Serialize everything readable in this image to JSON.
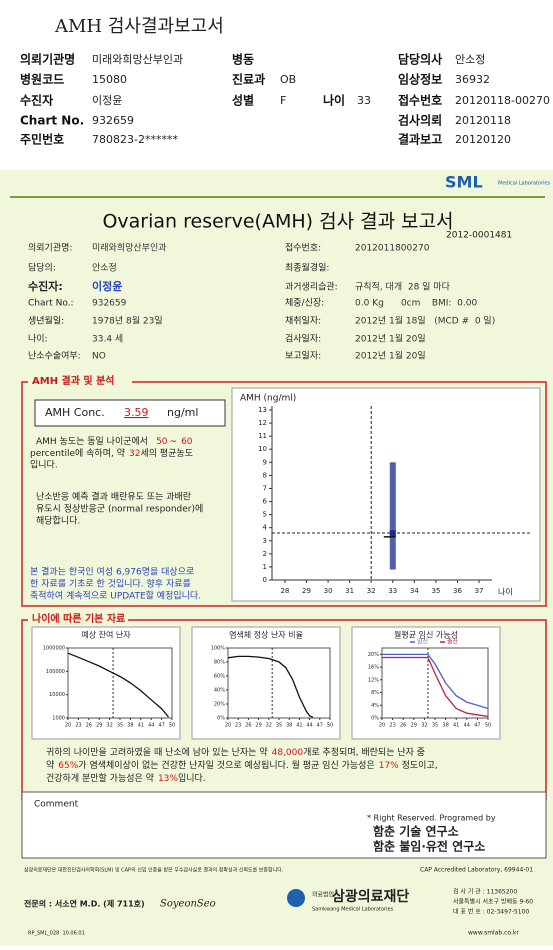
{
  "header": {
    "title": "AMH 검사결과보고서",
    "rows": [
      [
        {
          "label": "의뢰기관명",
          "value": "미래와희망산부인과"
        },
        {
          "label": "병동"
        },
        {
          "label": "담당의사",
          "value": "안소정"
        }
      ],
      [
        {
          "label": "병원코드",
          "value": "15080"
        },
        {
          "label": "진료과",
          "value": "OB"
        },
        {
          "label": "임상정보",
          "value": "36932"
        }
      ],
      [
        {
          "label": "수진자",
          "value": "이정윤"
        },
        {
          "label": "성별",
          "value": "F"
        },
        {
          "label": "나이",
          "value": "33"
        },
        {
          "label": "접수번호",
          "value": "20120118-00270"
        }
      ],
      [
        {
          "label": "Chart No.",
          "value": "932659"
        },
        {
          "label": "검사의뢰",
          "value": "20120118"
        }
      ],
      [
        {
          "label": "주민번호",
          "value": "780823-2******"
        },
        {
          "label": "결과보고",
          "value": "20120120"
        }
      ]
    ]
  },
  "report": {
    "logo": "SML",
    "logo_sub": "Medical Laboratories",
    "title": "Ovarian reserve(AMH) 검사 결과 보고서",
    "number": "2012-0001481",
    "info_left": [
      {
        "label": "의뢰기관명:",
        "value": "미래와희망산부인과"
      },
      {
        "label": "담당의:",
        "value": "안소정"
      },
      {
        "label": "수진자:",
        "value": "이정윤"
      },
      {
        "label": "Chart No.:",
        "value": "932659"
      },
      {
        "label": "생년월일:",
        "value": "1978년 8월 23일"
      },
      {
        "label": "나이:",
        "value": "33.4 세"
      },
      {
        "label": "난소수술여부:",
        "value": "NO"
      }
    ],
    "info_right": [
      {
        "label": "접수번호:",
        "value": "2012011800270"
      },
      {
        "label": "최종월경일:"
      },
      {
        "label": "과거생리습관:",
        "value": "규칙적, 대개  28 일 마다"
      },
      {
        "label": "체중/신장:",
        "value": "0.0 Kg      0cm    BMI:  0.00"
      },
      {
        "label": "채취일자:",
        "value": "2012년 1월 18일   (MCD #  0 일)"
      },
      {
        "label": "검사일자:",
        "value": "2012년 1월 20일"
      },
      {
        "label": "보고일자:",
        "value": "2012년 1월 20일"
      }
    ]
  },
  "analysis": {
    "title": "AMH 결과 및 분석",
    "conc_label": "AMH Conc.",
    "conc_value": 3.59,
    "conc_unit": "ng/ml",
    "s1a": "AMH 농도는 동일 나이군에서",
    "pct_low": 50,
    "s1b": "~",
    "pct_high": 60,
    "s1c": "percentile에 속하며, 약",
    "avg_age": 32,
    "s1d": "세의 평균농도",
    "s1e": "입니다.",
    "s2": [
      "난소반응 예측 결과 배란유도 또는 과배란",
      "유도시 정상반응군 (normal responder)에",
      "해당합니다."
    ],
    "note": [
      "본 결과는 한국인 여성 6,976명을 대상으로",
      "한 자료를 기초로 한 것입니다. 향후 자료를",
      "축적하여 계속적으로 UPDATE할 예정입니다."
    ]
  },
  "amh_chart": {
    "y_label": "AMH (ng/ml)",
    "x_label": "나이",
    "xlim": [
      27.4,
      37.6
    ],
    "xticks": [
      28,
      29,
      30,
      31,
      32,
      33,
      34,
      35,
      36,
      37
    ],
    "ylim": [
      0,
      13
    ],
    "yticks": [
      0,
      1,
      2,
      3,
      4,
      5,
      6,
      7,
      8,
      9,
      10,
      11,
      12,
      13
    ],
    "range": {
      "x": 33,
      "low": 0.8,
      "high": 9,
      "mean": 3.3
    },
    "color": "#5060a8"
  },
  "basic": {
    "title": "나이에 따른 기본 자료",
    "charts": [
      {
        "type": "line",
        "title": "예상 잔여 난자",
        "log": true,
        "ylim": [
          1000,
          1000000
        ],
        "yticks": [
          1000,
          10000,
          100000,
          1000000
        ],
        "xlim": [
          20,
          50
        ],
        "xticks": [
          20,
          23,
          26,
          29,
          32,
          35,
          38,
          41,
          44,
          47,
          50
        ],
        "ref_x": 33,
        "x": [
          20,
          23,
          26,
          29,
          32,
          35,
          38,
          41,
          44,
          47,
          49
        ],
        "series": [
          {
            "color": "#111111",
            "values": [
              600000,
              400000,
              260000,
              170000,
              100000,
              60000,
              32000,
              15000,
              6000,
              2500,
              1100
            ]
          }
        ]
      },
      {
        "type": "line",
        "title": "염색체 정상 난자 비율",
        "log": false,
        "ylim": [
          0,
          100
        ],
        "yticks": [
          {
            "value": 0,
            "label": "0%"
          },
          {
            "value": 20,
            "label": "20%"
          },
          {
            "value": 40,
            "label": "40%"
          },
          {
            "value": 60,
            "label": "60%"
          },
          {
            "value": 80,
            "label": "80%"
          },
          {
            "value": 100,
            "label": "100%"
          }
        ],
        "xlim": [
          20,
          50
        ],
        "xticks": [
          20,
          23,
          26,
          29,
          32,
          35,
          38,
          41,
          44,
          47,
          50
        ],
        "ref_x": 33,
        "x": [
          20,
          23,
          26,
          29,
          32,
          35,
          37,
          39,
          41,
          43,
          44,
          45
        ],
        "series": [
          {
            "color": "#111111",
            "values": [
              86,
              88,
              88,
              87,
              85,
              80,
              72,
              55,
              30,
              10,
              3,
              1
            ]
          }
        ]
      },
      {
        "type": "line",
        "title": "월평균 임신 가능성",
        "log": false,
        "ylim": [
          0,
          22
        ],
        "yticks": [
          {
            "value": 0,
            "label": "0%"
          },
          {
            "value": 4,
            "label": "4%"
          },
          {
            "value": 8,
            "label": "8%"
          },
          {
            "value": 12,
            "label": "12%"
          },
          {
            "value": 16,
            "label": "16%"
          },
          {
            "value": 20,
            "label": "20%"
          }
        ],
        "xlim": [
          20,
          50
        ],
        "xticks": [
          20,
          23,
          26,
          29,
          32,
          35,
          38,
          41,
          44,
          47,
          50
        ],
        "ref_x": 33,
        "x": [
          20,
          25,
          30,
          33,
          35,
          38,
          41,
          44,
          47,
          50
        ],
        "series": [
          {
            "name": "임신",
            "color": "#5060d0",
            "values": [
              20,
              20,
              20,
              20,
              17,
              11,
              7,
              5,
              4,
              3
            ]
          },
          {
            "name": "출산",
            "color": "#c02040",
            "values": [
              19,
              19,
              19,
              19,
              14,
              7,
              3,
              1.5,
              1,
              0.5
            ]
          }
        ]
      }
    ]
  },
  "summary": {
    "a": "귀하의 나이만을 고려하였을 때 난소에 남아 있는 난자는 약",
    "eggs": "48,000",
    "b": "개로 추정되며, 배란되는 난자 중",
    "c": "약",
    "normal": "65%",
    "d": "가 염색체이상이 없는 건강한 난자일 것으로 예상됩니다. 월 평균 임신 가능성은",
    "pregnancy": "17%",
    "e": " 정도이고,",
    "f": "건강하게 분만할 가능성은 약",
    "birth": "13%",
    "g": "입니다."
  },
  "footer": {
    "comment": "Comment",
    "rights": [
      "* Right Reserved. Programed by",
      "함춘 기술 연구소",
      "함춘 불임·유전 연구소"
    ],
    "cert": "삼광의료재단은 대한진단검사의학회(SLM) 및 CAP의 신임 인증을 받은 우수검사실로 결과의 정확성과 신뢰도를 보증합니다.",
    "cap": "CAP Accredited Laboratory, 69944-01",
    "doctor": "전문의 : 서소연 M.D. (제 711호)",
    "signature": "SoyeonSeo",
    "org_small": "의료법인",
    "org": "삼광의료재단",
    "org_en": "Samkwang Medical Laboratories",
    "contact": [
      "검 사 기 관 : 11365200",
      "서울특별시 서초구 방배동 9-60",
      "대 표 번 호 : 02-3497-5100"
    ],
    "form": "RP_SML_028  10.06.01",
    "url": "www.smlab.co.kr"
  }
}
